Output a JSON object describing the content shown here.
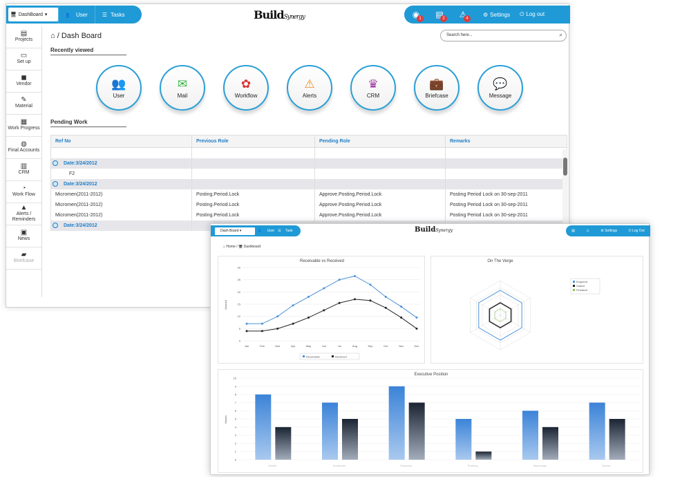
{
  "main": {
    "topbar": {
      "dashboard_select": "DashBoard",
      "nav": [
        {
          "label": "User",
          "icon": "users-icon"
        },
        {
          "label": "Tasks",
          "icon": "list-icon"
        }
      ],
      "logo_word": "Build",
      "logo_script": "Synergy",
      "right": [
        {
          "icon": "globe-icon",
          "badge": "1"
        },
        {
          "icon": "server-icon",
          "badge": "2"
        },
        {
          "icon": "alert-icon",
          "badge": "4"
        }
      ],
      "settings_label": "Settings",
      "logout_label": "Log out"
    },
    "sidebar": [
      {
        "label": "Projects",
        "icon": "document-icon"
      },
      {
        "label": "Set up",
        "icon": "monitor-icon"
      },
      {
        "label": "Vendor",
        "icon": "person-icon"
      },
      {
        "label": "Material",
        "icon": "pencil-icon"
      },
      {
        "label": "Work Progress",
        "icon": "barcode-icon"
      },
      {
        "label": "Final Accounts",
        "icon": "coins-icon"
      },
      {
        "label": "CRM",
        "icon": "bar-chart-icon"
      },
      {
        "label": "Work Flow",
        "icon": "pie-chart-icon"
      },
      {
        "label": "Alerts / Reminders",
        "icon": "alert-icon"
      },
      {
        "label": "News",
        "icon": "news-icon"
      },
      {
        "label": "Briefcase",
        "icon": "briefcase-icon"
      }
    ],
    "breadcrumb": {
      "sep": "/",
      "title": "Dash Board"
    },
    "search_placeholder": "Search here...",
    "recently_viewed": "Recently viewed",
    "quick_links": [
      {
        "label": "User",
        "color": "#2f8fd6",
        "glyph": "👥"
      },
      {
        "label": "Mail",
        "color": "#3bb54a",
        "glyph": "✉"
      },
      {
        "label": "Workflow",
        "color": "#e0302f",
        "glyph": "✿"
      },
      {
        "label": "Alerts",
        "color": "#f08a1d",
        "glyph": "⚠"
      },
      {
        "label": "CRM",
        "color": "#a0379e",
        "glyph": "♛"
      },
      {
        "label": "Briefcase",
        "color": "#4caf50",
        "glyph": "💼"
      },
      {
        "label": "Message",
        "color": "#2f8fd6",
        "glyph": "💬"
      }
    ],
    "pending_work": "Pending Work",
    "table": {
      "headers": [
        "Ref No",
        "Previous Role",
        "Pending Role",
        "Remarks"
      ],
      "rows": [
        {
          "type": "blank",
          "cells": [
            "",
            "",
            "",
            ""
          ]
        },
        {
          "type": "group",
          "cells": [
            "Date:3/24/2012",
            "",
            "",
            ""
          ]
        },
        {
          "type": "item",
          "cells": [
            "F2",
            "",
            "",
            ""
          ]
        },
        {
          "type": "group",
          "cells": [
            "Date:3/24/2012",
            "",
            "",
            ""
          ]
        },
        {
          "type": "item",
          "cells": [
            "Micromen(2011-2012)",
            "Posting.Period.Lock",
            "Approve.Posting.Period.Lock",
            "Posting Period Lock on 30-sep-2011"
          ]
        },
        {
          "type": "item",
          "cells": [
            "Micromen(2011-2012)",
            "Posting.Period.Lock",
            "Approve.Posting.Period.Lock",
            "Posting Period Lock on 30-sep-2011"
          ]
        },
        {
          "type": "item",
          "cells": [
            "Micromen(2011-2012)",
            "Posting.Period.Lock",
            "Approve.Posting.Period.Lock",
            "Posting Period Lock on 30-sep-2011"
          ]
        },
        {
          "type": "group",
          "cells": [
            "Date:3/24/2012",
            "",
            "",
            ""
          ]
        }
      ]
    }
  },
  "second": {
    "topbar": {
      "dashboard_select": "Dash Board",
      "nav": [
        "User",
        "Task"
      ],
      "logo_word": "Build",
      "logo_script": "Synergy",
      "settings_label": "Settings",
      "logout_label": "Log Out"
    },
    "breadcrumb": {
      "home": "Home",
      "sep": "/",
      "page": "Dashboard"
    }
  },
  "chart_data": [
    {
      "type": "line",
      "title": "Receivable vs Received",
      "categories": [
        "Jan",
        "Feb",
        "Mar",
        "Apr",
        "May",
        "Jun",
        "Jul",
        "Aug",
        "Sep",
        "Oct",
        "Nov",
        "Dec"
      ],
      "series": [
        {
          "name": "Receivable",
          "values": [
            7,
            7,
            10,
            14.5,
            18,
            21.5,
            25,
            26.5,
            23,
            18,
            14,
            9.5
          ]
        },
        {
          "name": "Received",
          "values": [
            4,
            4,
            5,
            7,
            9.5,
            12.5,
            15.5,
            17,
            16.5,
            13.5,
            9.5,
            5
          ]
        }
      ],
      "ylabel": "Amount",
      "ylim": [
        0,
        30
      ],
      "yticks": [
        0,
        5,
        10,
        15,
        20,
        25,
        30
      ],
      "colors": [
        "#4a90d9",
        "#222222"
      ],
      "legend": "bottom"
    },
    {
      "type": "radar",
      "title": "On The Verge",
      "legend_entries": [
        "Enquired",
        "Visited",
        "Finalized"
      ],
      "colors": [
        "#4a90d9",
        "#222222",
        "#8bc34a"
      ],
      "legend": "right"
    },
    {
      "type": "bar",
      "title": "Executive Position",
      "categories": [
        "Harish",
        "Sundaram",
        "Saravana",
        "Pradeep",
        "Shanmuga",
        "Dinesh"
      ],
      "series": [
        {
          "name": "",
          "values": [
            8,
            7,
            9,
            5,
            6,
            7
          ]
        },
        {
          "name": "",
          "values": [
            4,
            5,
            7,
            1,
            4,
            5
          ]
        }
      ],
      "ylabel": "Values",
      "ylim": [
        0,
        10
      ],
      "yticks": [
        0,
        1,
        2,
        3,
        4,
        5,
        6,
        7,
        8,
        9,
        10
      ],
      "colors": [
        "#3b83d8",
        "#1b2433"
      ],
      "legend": "none"
    }
  ]
}
